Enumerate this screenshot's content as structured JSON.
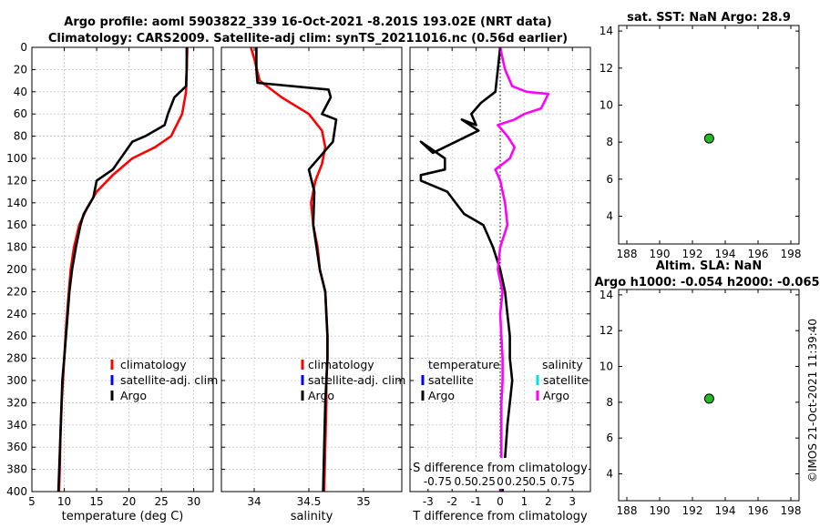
{
  "header": {
    "line1": "Argo profile: aoml 5903822_339 16-Oct-2021 -8.201S 193.02E (NRT data)",
    "line2": "Climatology: CARS2009. Satellite-adj clim: synTS_20211016.nc (0.56d earlier)"
  },
  "watermark": "©IMOS 21-Oct-2021 11:39:40",
  "colors": {
    "climatology": "#ff0000",
    "satellite": "#0000ff",
    "argo": "#000000",
    "salinity_argo": "#ff00ff",
    "salinity_sat": "#00e0e0",
    "marker": "#22bb22",
    "grid": "#b8b8b8"
  },
  "chart_data": [
    {
      "id": "temperature",
      "type": "line",
      "xlabel": "temperature (deg C)",
      "xlim": [
        5,
        33
      ],
      "xticks": [
        "5",
        "10",
        "15",
        "20",
        "25",
        "30"
      ],
      "ylim": [
        0,
        400
      ],
      "yticks": [
        "0",
        "20",
        "40",
        "60",
        "80",
        "100",
        "120",
        "140",
        "160",
        "180",
        "200",
        "220",
        "240",
        "260",
        "280",
        "300",
        "320",
        "340",
        "360",
        "380",
        "400"
      ],
      "legend": [
        "climatology",
        "satellite-adj. clim",
        "Argo"
      ],
      "series": [
        {
          "name": "climatology",
          "color": "#ff0000",
          "x": [
            29.0,
            28.9,
            28.8,
            28.2,
            26.5,
            24.0,
            20.5,
            17.5,
            15.0,
            13.5,
            12.3,
            11.5,
            11.0,
            10.7,
            10.3,
            10.0,
            9.8,
            9.6,
            9.4,
            9.3,
            9.2
          ],
          "y": [
            0,
            20,
            40,
            60,
            80,
            90,
            100,
            115,
            130,
            145,
            160,
            180,
            200,
            220,
            250,
            280,
            300,
            320,
            350,
            380,
            400
          ]
        },
        {
          "name": "Argo",
          "color": "#000000",
          "x": [
            28.9,
            28.9,
            28.8,
            27.0,
            26.0,
            25.5,
            22.5,
            20.5,
            17.5,
            15.0,
            14.5,
            13.0,
            12.5,
            11.8,
            11.2,
            10.8,
            10.4,
            10.0,
            9.7,
            9.4,
            9.1
          ],
          "y": [
            0,
            20,
            35,
            45,
            60,
            70,
            80,
            85,
            110,
            120,
            135,
            150,
            160,
            180,
            200,
            220,
            250,
            280,
            300,
            350,
            400
          ]
        }
      ]
    },
    {
      "id": "salinity",
      "type": "line",
      "xlabel": "salinity",
      "xlim": [
        33.7,
        35.35
      ],
      "xticks": [
        "34",
        "34.5",
        "35"
      ],
      "ylim": [
        0,
        400
      ],
      "legend": [
        "climatology",
        "satellite-adj. clim",
        "Argo"
      ],
      "series": [
        {
          "name": "climatology",
          "color": "#ff0000",
          "x": [
            33.97,
            34.0,
            34.05,
            34.25,
            34.5,
            34.62,
            34.65,
            34.62,
            34.56,
            34.52,
            34.54,
            34.58,
            34.6,
            34.65,
            34.66,
            34.67,
            34.67,
            34.66,
            34.66,
            34.65,
            34.64
          ],
          "y": [
            0,
            10,
            30,
            45,
            60,
            75,
            90,
            105,
            120,
            140,
            160,
            180,
            200,
            220,
            240,
            260,
            280,
            300,
            320,
            360,
            400
          ]
        },
        {
          "name": "Argo",
          "color": "#000000",
          "x": [
            34.02,
            34.02,
            34.03,
            34.68,
            34.7,
            34.62,
            34.75,
            34.72,
            34.5,
            34.55,
            34.54,
            34.57,
            34.6,
            34.65,
            34.66,
            34.67,
            34.67,
            34.66,
            34.65,
            34.64,
            34.63
          ],
          "y": [
            0,
            20,
            32,
            38,
            45,
            60,
            65,
            85,
            110,
            130,
            160,
            180,
            200,
            220,
            240,
            260,
            280,
            300,
            320,
            360,
            400
          ]
        }
      ]
    },
    {
      "id": "difference",
      "type": "line",
      "xlabel": "T difference from climatology",
      "xlim": [
        -3.75,
        3.75
      ],
      "xticks": [
        "-3",
        "-2",
        "-1",
        "0",
        "1",
        "2",
        "3"
      ],
      "top_label": "S difference from climatology",
      "top_ticks": [
        "-0.75",
        "0.5",
        "0.25",
        "0",
        "0.25",
        "0.5",
        "0.75"
      ],
      "ylim": [
        0,
        400
      ],
      "legend_temperature": {
        "title": "temperature",
        "entries": [
          "satellite",
          "Argo"
        ]
      },
      "legend_salinity": {
        "title": "salinity",
        "entries": [
          "satellite",
          "Argo"
        ]
      },
      "series": [
        {
          "name": "T Argo",
          "color": "#000000",
          "x": [
            0.0,
            -0.1,
            -0.2,
            -0.8,
            -1.2,
            -1.0,
            -1.6,
            -0.9,
            -2.8,
            -3.3,
            -2.3,
            -2.3,
            -3.3,
            -3.3,
            -2.2,
            -1.5,
            -0.7,
            -0.5,
            -0.3,
            0.0,
            0.2,
            0.3,
            0.4,
            0.4,
            0.5,
            0.4,
            0.3,
            0.2,
            0.1
          ],
          "y": [
            0,
            20,
            40,
            50,
            60,
            70,
            65,
            75,
            95,
            85,
            100,
            110,
            115,
            120,
            130,
            150,
            160,
            170,
            180,
            200,
            220,
            240,
            260,
            280,
            300,
            320,
            340,
            370,
            400
          ]
        },
        {
          "name": "S Argo",
          "color": "#ff00ff",
          "x": [
            0.0,
            0.1,
            0.2,
            0.5,
            1.1,
            2.0,
            1.7,
            1.0,
            0.6,
            -0.1,
            0.3,
            0.6,
            0.4,
            -0.2,
            0.0,
            0.2,
            0.3,
            0.0,
            -0.1,
            0.1,
            0.0,
            0.05,
            0.1,
            0.1,
            0.05,
            0.05,
            0.05,
            0.0
          ],
          "y": [
            0,
            10,
            20,
            35,
            40,
            42,
            55,
            60,
            65,
            70,
            80,
            90,
            100,
            110,
            120,
            140,
            160,
            180,
            200,
            220,
            240,
            260,
            280,
            300,
            320,
            340,
            370,
            400
          ]
        }
      ]
    },
    {
      "id": "sst_map",
      "type": "scatter",
      "title": "sat. SST: NaN Argo: 28.9",
      "xlim": [
        187.5,
        198.5
      ],
      "xticks": [
        "188",
        "190",
        "192",
        "194",
        "196",
        "198"
      ],
      "ylim": [
        2.5,
        14.3
      ],
      "yticks": [
        "4",
        "6",
        "8",
        "10",
        "12",
        "14"
      ],
      "points": [
        {
          "x": 193.02,
          "y": 8.2
        }
      ]
    },
    {
      "id": "sla_map",
      "type": "scatter",
      "title": "Altim. SLA: NaN",
      "subtitle": "Argo h1000: -0.054 h2000: -0.065",
      "xlim": [
        187.5,
        198.5
      ],
      "xticks": [
        "188",
        "190",
        "192",
        "194",
        "196",
        "198"
      ],
      "ylim": [
        2.5,
        14.3
      ],
      "yticks": [
        "4",
        "6",
        "8",
        "10",
        "12",
        "14"
      ],
      "points": [
        {
          "x": 193.02,
          "y": 8.2
        }
      ]
    }
  ]
}
